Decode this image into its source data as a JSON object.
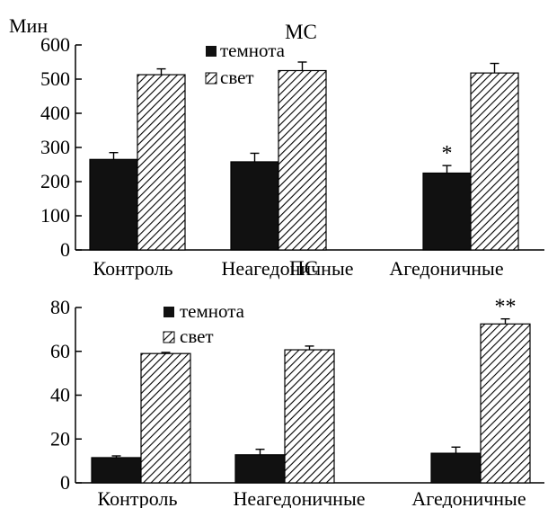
{
  "chart_data": [
    {
      "type": "bar",
      "title": "МС",
      "ylabel": "Мин",
      "ylim": [
        0,
        600
      ],
      "yticks": [
        0,
        100,
        200,
        300,
        400,
        500,
        600
      ],
      "categories": [
        "Контроль",
        "Неагедоничные",
        "Агедоничные"
      ],
      "series": [
        {
          "name": "темнота",
          "values": [
            265,
            258,
            225
          ],
          "errors": [
            20,
            25,
            22
          ],
          "fill": "#111111"
        },
        {
          "name": "свет",
          "values": [
            513,
            525,
            518
          ],
          "errors": [
            17,
            25,
            28
          ],
          "fill": "hatch"
        }
      ],
      "annotations": [
        {
          "category": "Агедоничные",
          "series": "темнота",
          "text": "*"
        }
      ],
      "legend_position": "top-left"
    },
    {
      "type": "bar",
      "title": "ПС",
      "ylabel": "",
      "ylim": [
        0,
        80
      ],
      "yticks": [
        0,
        20,
        40,
        60,
        80
      ],
      "categories": [
        "Контроль",
        "Неагедоничные",
        "Агедоничные"
      ],
      "series": [
        {
          "name": "темнота",
          "values": [
            11.5,
            12.8,
            13.5
          ],
          "errors": [
            0.8,
            2.5,
            2.8
          ],
          "fill": "#111111"
        },
        {
          "name": "свет",
          "values": [
            59,
            60.7,
            72.5
          ],
          "errors": [
            0.5,
            1.7,
            2.3
          ],
          "fill": "hatch"
        }
      ],
      "annotations": [
        {
          "category": "Агедоничные",
          "series": "свет",
          "text": "**"
        }
      ],
      "legend_position": "top-left"
    }
  ]
}
